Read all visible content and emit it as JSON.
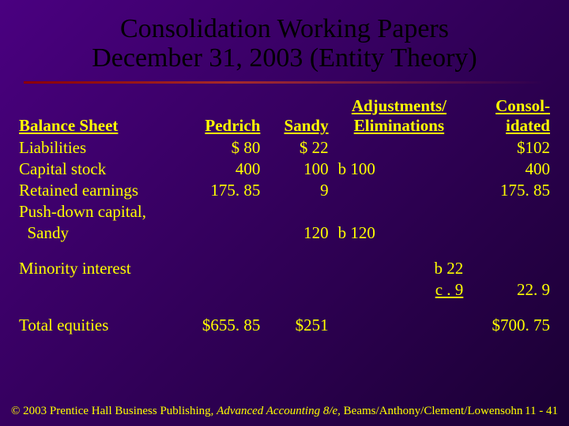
{
  "title": {
    "line1": "Consolidation Working Papers",
    "line2": "December 31, 2003 (Entity Theory)"
  },
  "headers": {
    "col1": "Balance Sheet",
    "col2": "Pedrich",
    "col3": "Sandy",
    "col4": "Adjustments/ Eliminations",
    "col5": "Consol- idated"
  },
  "rows": {
    "liab": {
      "label": "Liabilities",
      "ped": "$  80",
      "san": "$  22",
      "adjL": "",
      "adjR": "",
      "cons": "$102"
    },
    "cap": {
      "label": "Capital stock",
      "ped": "400",
      "san": "100",
      "adjL": "b 100",
      "adjR": "",
      "cons": "400"
    },
    "ret": {
      "label": "Retained earnings",
      "ped": "175. 85",
      "san": "9",
      "adjL": "",
      "adjR": "",
      "cons": "175. 85"
    },
    "push1": {
      "label": "Push-down capital,",
      "ped": "",
      "san": "",
      "adjL": "",
      "adjR": "",
      "cons": ""
    },
    "push2": {
      "label": "  Sandy",
      "ped": "",
      "san": "120",
      "adjL": "b 120",
      "adjR": "",
      "cons": ""
    },
    "min1": {
      "label": "Minority interest",
      "ped": "",
      "san": "",
      "adjL": "",
      "adjR": "b 22",
      "cons": ""
    },
    "min2": {
      "label": "",
      "ped": "",
      "san": "",
      "adjL": "",
      "adjR": "c    . 9",
      "cons": "22. 9"
    },
    "tot": {
      "label": "Total equities",
      "ped": "$655. 85",
      "san": "$251",
      "adjL": "",
      "adjR": "",
      "cons": "$700. 75"
    }
  },
  "footer": {
    "left_a": "© 2003 Prentice Hall Business Publishing, ",
    "left_b": "Advanced Accounting 8/e,",
    "left_c": " Beams/Anthony/Clement/Lowensohn",
    "right": "11 - 41"
  },
  "style": {
    "text_color": "#ffff00",
    "title_color": "#000000",
    "bg_gradient_from": "#4a0080",
    "bg_gradient_to": "#1a0033",
    "divider_color": "#8b0000",
    "title_fontsize": 34,
    "body_fontsize": 21,
    "footer_fontsize": 15
  }
}
